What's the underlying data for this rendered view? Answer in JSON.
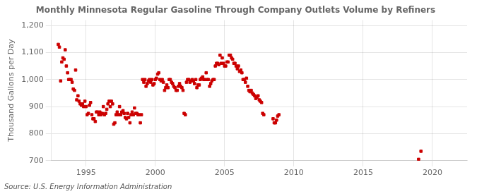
{
  "chart_data": {
    "type": "scatter",
    "title": "Monthly Minnesota Regular Gasoline Through Company Outlets Volume by Refiners",
    "ylabel": "Thousand Gallons per Day",
    "source": "Source: U.S. Energy Information Administration",
    "color": "#cc0000",
    "marker": "square",
    "grid": true,
    "ylim": [
      700,
      1220
    ],
    "yticks": [
      700,
      800,
      900,
      {
        "value": 1000,
        "label": "1,000"
      },
      {
        "value": 1100,
        "label": "1,100"
      },
      {
        "value": 1200,
        "label": "1,200"
      }
    ],
    "xlim": [
      1992.5,
      2022.5
    ],
    "xticks": [
      1995,
      2000,
      2005,
      2010,
      2015,
      2020
    ],
    "x": [
      1993.0,
      1993.08,
      1993.17,
      1993.25,
      1993.33,
      1993.42,
      1993.5,
      1993.58,
      1993.67,
      1993.75,
      1993.83,
      1993.92,
      1994.0,
      1994.08,
      1994.17,
      1994.25,
      1994.33,
      1994.42,
      1994.5,
      1994.58,
      1994.67,
      1994.75,
      1994.83,
      1994.92,
      1995.0,
      1995.08,
      1995.17,
      1995.25,
      1995.33,
      1995.42,
      1995.5,
      1995.58,
      1995.67,
      1995.75,
      1995.83,
      1995.92,
      1996.0,
      1996.08,
      1996.17,
      1996.25,
      1996.33,
      1996.42,
      1996.5,
      1996.58,
      1996.67,
      1996.75,
      1996.83,
      1996.92,
      1997.0,
      1997.08,
      1997.17,
      1997.25,
      1997.33,
      1997.42,
      1997.5,
      1997.58,
      1997.67,
      1997.75,
      1997.83,
      1997.92,
      1998.0,
      1998.08,
      1998.17,
      1998.25,
      1998.33,
      1998.42,
      1998.5,
      1998.58,
      1998.67,
      1998.75,
      1998.83,
      1998.92,
      1999.0,
      1999.08,
      1999.17,
      1999.25,
      1999.33,
      1999.42,
      1999.5,
      1999.58,
      1999.67,
      1999.75,
      1999.83,
      1999.92,
      2000.0,
      2000.08,
      2000.17,
      2000.25,
      2000.33,
      2000.42,
      2000.5,
      2000.58,
      2000.67,
      2000.75,
      2000.83,
      2000.92,
      2001.0,
      2001.08,
      2001.17,
      2001.25,
      2001.33,
      2001.42,
      2001.5,
      2001.58,
      2001.67,
      2001.75,
      2001.83,
      2001.92,
      2002.0,
      2002.08,
      2002.17,
      2002.25,
      2002.33,
      2002.42,
      2002.5,
      2002.58,
      2002.67,
      2002.75,
      2002.83,
      2002.92,
      2003.0,
      2003.08,
      2003.17,
      2003.25,
      2003.33,
      2003.42,
      2003.5,
      2003.58,
      2003.67,
      2003.75,
      2003.83,
      2003.92,
      2004.0,
      2004.08,
      2004.17,
      2004.25,
      2004.33,
      2004.42,
      2004.5,
      2004.58,
      2004.67,
      2004.75,
      2004.83,
      2004.92,
      2005.0,
      2005.08,
      2005.17,
      2005.25,
      2005.33,
      2005.42,
      2005.5,
      2005.58,
      2005.67,
      2005.75,
      2005.83,
      2005.92,
      2006.0,
      2006.08,
      2006.17,
      2006.25,
      2006.33,
      2006.42,
      2006.5,
      2006.58,
      2006.67,
      2006.75,
      2006.83,
      2006.92,
      2007.0,
      2007.08,
      2007.17,
      2007.25,
      2007.33,
      2007.42,
      2007.5,
      2007.58,
      2007.67,
      2007.75,
      2007.83,
      2008.5,
      2008.58,
      2008.67,
      2008.75,
      2008.83,
      2008.92,
      2019.0,
      2019.17
    ],
    "values": [
      1130,
      1120,
      995,
      1065,
      1080,
      1075,
      1110,
      1050,
      1025,
      1000,
      1000,
      1000,
      990,
      965,
      960,
      1035,
      925,
      940,
      920,
      910,
      905,
      910,
      900,
      920,
      900,
      870,
      875,
      905,
      915,
      870,
      855,
      855,
      845,
      880,
      880,
      870,
      880,
      870,
      875,
      900,
      870,
      875,
      890,
      910,
      920,
      900,
      920,
      910,
      835,
      840,
      870,
      880,
      870,
      900,
      870,
      880,
      885,
      875,
      860,
      855,
      875,
      860,
      840,
      870,
      880,
      870,
      895,
      875,
      875,
      870,
      870,
      840,
      870,
      1000,
      990,
      1000,
      975,
      985,
      995,
      1000,
      990,
      1000,
      980,
      985,
      1000,
      1005,
      1020,
      1025,
      1000,
      995,
      1000,
      990,
      960,
      970,
      980,
      970,
      1000,
      1000,
      990,
      985,
      975,
      970,
      960,
      960,
      975,
      985,
      975,
      970,
      960,
      875,
      870,
      990,
      1000,
      1000,
      990,
      995,
      1000,
      995,
      985,
      1000,
      970,
      980,
      980,
      1000,
      1005,
      1010,
      1000,
      1000,
      1025,
      1000,
      1000,
      975,
      985,
      995,
      1000,
      1000,
      1050,
      1060,
      1060,
      1055,
      1090,
      1060,
      1080,
      1060,
      1050,
      1050,
      1065,
      1065,
      1090,
      1090,
      1080,
      1075,
      1060,
      1060,
      1050,
      1040,
      1050,
      1030,
      1035,
      1025,
      1000,
      1000,
      990,
      1005,
      975,
      960,
      955,
      960,
      950,
      945,
      940,
      930,
      935,
      940,
      925,
      920,
      915,
      875,
      870,
      855,
      840,
      840,
      850,
      865,
      870,
      705,
      735
    ]
  }
}
